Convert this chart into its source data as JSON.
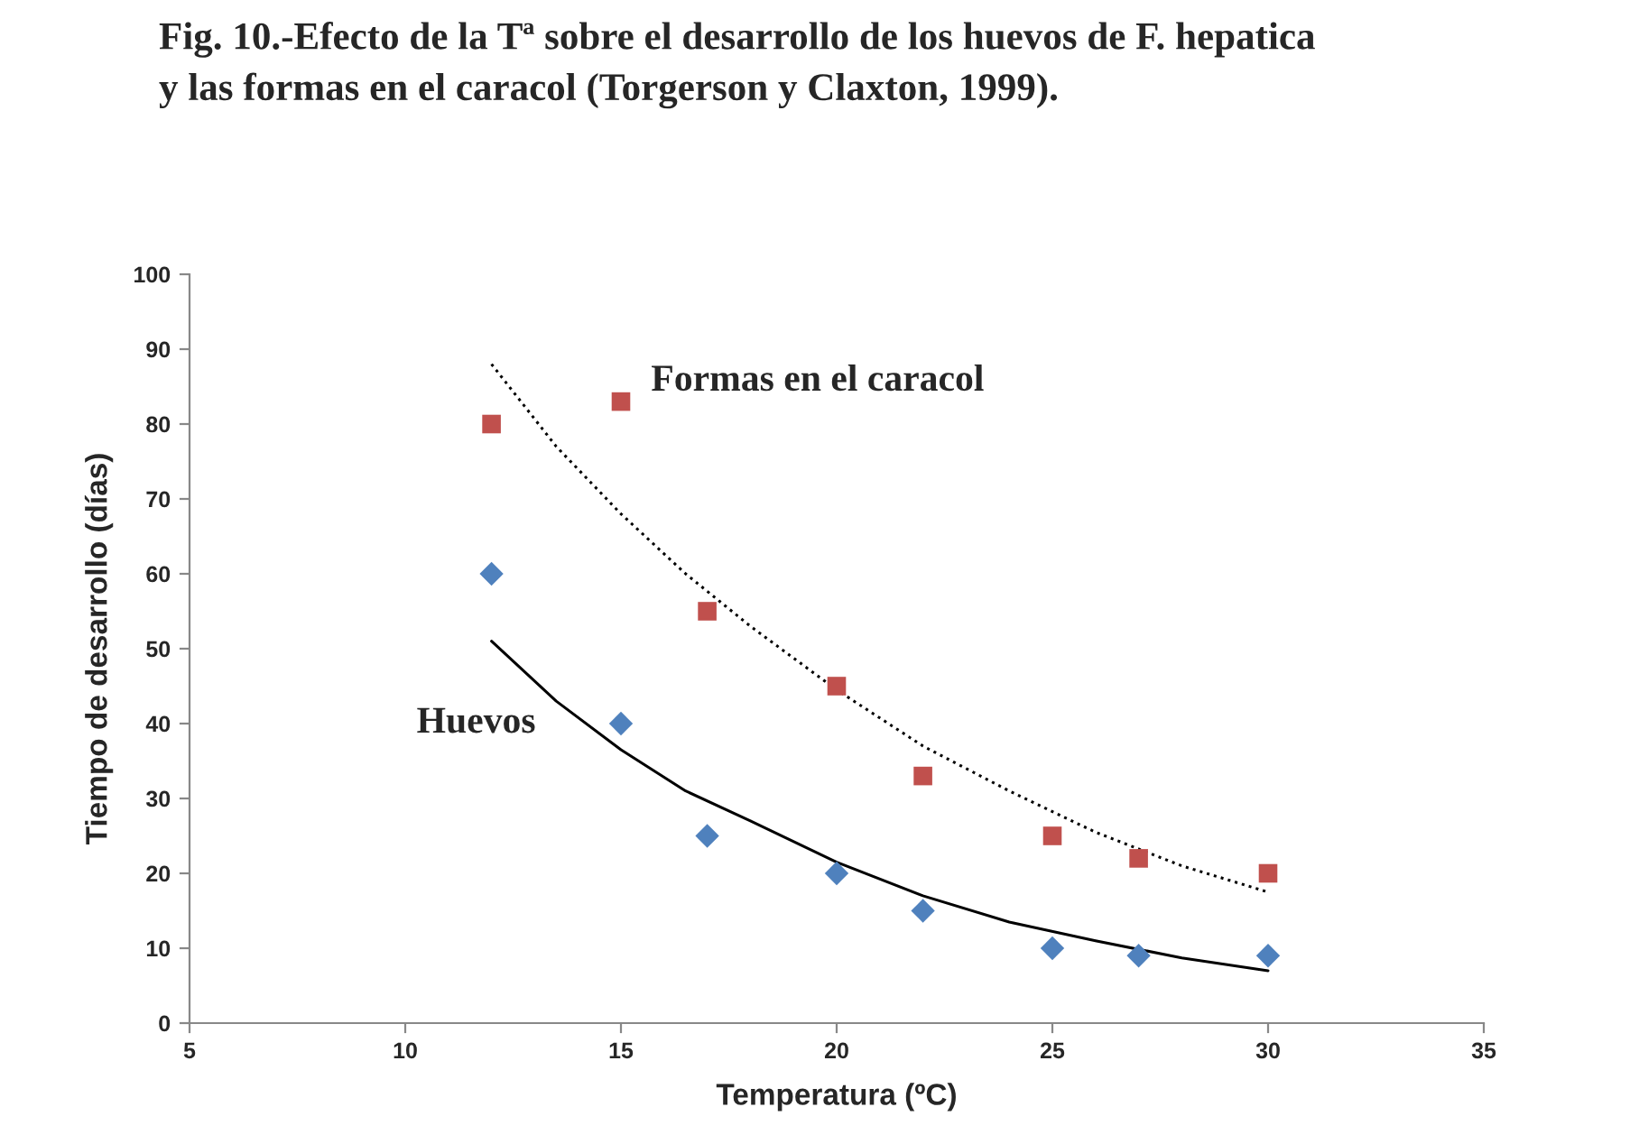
{
  "chart_data": {
    "type": "scatter",
    "title": "Fig. 10.-Efecto de la Tª sobre el desarrollo de los huevos de F. hepatica\ny las formas en el caracol (Torgerson y Claxton, 1999).",
    "xlabel": "Temperatura (ºC)",
    "ylabel": "Tiempo de desarrollo (días)",
    "xlim": [
      5,
      35
    ],
    "xticks": [
      5,
      10,
      15,
      20,
      25,
      30,
      35
    ],
    "ylim": [
      0,
      100
    ],
    "yticks": [
      0,
      10,
      20,
      30,
      40,
      50,
      60,
      70,
      80,
      90,
      100
    ],
    "grid": false,
    "legend": false,
    "series": [
      {
        "name": "Huevos",
        "marker": "diamond",
        "color": "#4f81bd",
        "x": [
          12,
          15,
          17,
          20,
          22,
          25,
          27,
          30
        ],
        "values": [
          60,
          40,
          25,
          20,
          15,
          10,
          9,
          9
        ]
      },
      {
        "name": "Formas en el caracol",
        "marker": "square",
        "color": "#c0504d",
        "x": [
          12,
          15,
          17,
          20,
          22,
          25,
          27,
          30
        ],
        "values": [
          80,
          83,
          55,
          45,
          33,
          25,
          22,
          20
        ]
      },
      {
        "type": "line",
        "line_style": "solid",
        "color": "#000000",
        "x": [
          12,
          13.5,
          15,
          16.5,
          18,
          20,
          22,
          24,
          26,
          28,
          30
        ],
        "values": [
          51,
          43,
          36.5,
          31,
          27,
          21.5,
          17,
          13.5,
          11,
          8.7,
          7
        ]
      },
      {
        "type": "line",
        "line_style": "dotted",
        "color": "#000000",
        "x": [
          12,
          13.5,
          15,
          16.5,
          18,
          20,
          22,
          24,
          26,
          28,
          30
        ],
        "values": [
          88,
          77,
          68,
          60,
          53,
          44.5,
          37,
          31,
          25.5,
          21,
          17.5
        ]
      }
    ]
  }
}
